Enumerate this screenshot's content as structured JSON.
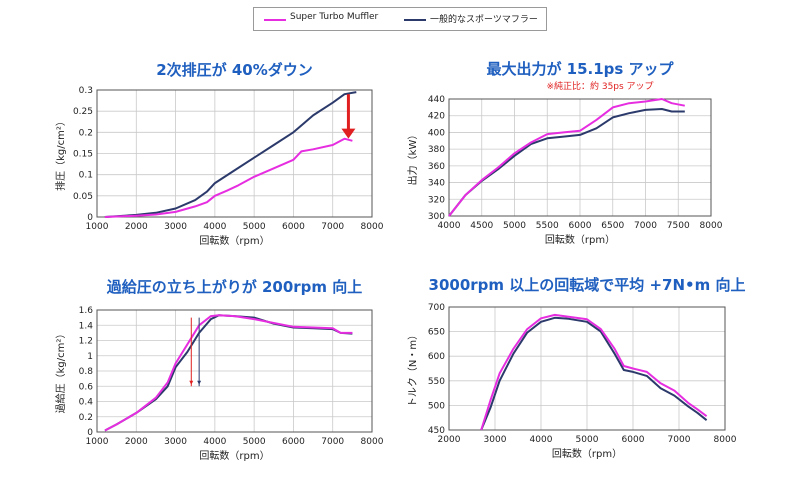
{
  "legend": {
    "s1": {
      "label": "Super Turbo Muffler",
      "color": "#e62ee0"
    },
    "s2": {
      "label": "一般的なスポーツマフラー",
      "color": "#2b3a6b"
    }
  },
  "chart_data": [
    {
      "type": "line",
      "title": "2次排圧が 40%ダウン",
      "subtitle": "",
      "xlabel": "回転数（rpm）",
      "ylabel": "排圧（kg/cm²）",
      "xlim": [
        1000,
        8000
      ],
      "ylim": [
        0,
        0.3
      ],
      "xticks": [
        1000,
        2000,
        3000,
        4000,
        5000,
        6000,
        7000,
        8000
      ],
      "yticks": [
        0,
        0.05,
        0.1,
        0.15,
        0.2,
        0.25,
        0.3
      ],
      "ytick_labels": [
        "0",
        "0.05",
        "0.1",
        "0.15",
        "0.2",
        "0.25",
        "0.3"
      ],
      "grid": true,
      "arrow": {
        "x": 7400,
        "y_from": 0.29,
        "y_to": 0.185,
        "color": "#e02020"
      },
      "series": [
        {
          "name": "Super Turbo Muffler",
          "x": [
            1200,
            2000,
            2500,
            3000,
            3500,
            3800,
            4000,
            4300,
            4600,
            5000,
            5500,
            6000,
            6200,
            6500,
            7000,
            7300,
            7500
          ],
          "y": [
            0,
            0.003,
            0.006,
            0.012,
            0.025,
            0.035,
            0.05,
            0.062,
            0.075,
            0.095,
            0.115,
            0.135,
            0.155,
            0.16,
            0.17,
            0.185,
            0.18
          ]
        },
        {
          "name": "一般的なスポーツマフラー",
          "x": [
            1200,
            2000,
            2500,
            3000,
            3500,
            3800,
            4000,
            4500,
            5000,
            5500,
            6000,
            6500,
            7000,
            7300,
            7600
          ],
          "y": [
            0,
            0.005,
            0.01,
            0.02,
            0.04,
            0.06,
            0.08,
            0.11,
            0.14,
            0.17,
            0.2,
            0.24,
            0.27,
            0.29,
            0.295
          ]
        }
      ]
    },
    {
      "type": "line",
      "title": "最大出力が 15.1ps アップ",
      "subtitle": "※純正比：約 35ps アップ",
      "xlabel": "回転数（rpm）",
      "ylabel": "出力（kW）",
      "xlim": [
        4000,
        8000
      ],
      "ylim": [
        300,
        440
      ],
      "xticks": [
        4000,
        4500,
        5000,
        5500,
        6000,
        6500,
        7000,
        7500,
        8000
      ],
      "yticks": [
        300,
        320,
        340,
        360,
        380,
        400,
        420,
        440
      ],
      "ytick_labels": [
        "300",
        "320",
        "340",
        "360",
        "380",
        "400",
        "420",
        "440"
      ],
      "grid": true,
      "series": [
        {
          "name": "Super Turbo Muffler",
          "x": [
            4000,
            4250,
            4500,
            4750,
            5000,
            5250,
            5500,
            5750,
            6000,
            6250,
            6500,
            6750,
            7000,
            7250,
            7400,
            7600
          ],
          "y": [
            300,
            325,
            343,
            358,
            375,
            388,
            398,
            400,
            402,
            415,
            430,
            435,
            437,
            440,
            435,
            432
          ]
        },
        {
          "name": "一般的なスポーツマフラー",
          "x": [
            4000,
            4250,
            4500,
            4750,
            5000,
            5250,
            5500,
            5750,
            6000,
            6250,
            6500,
            6750,
            7000,
            7250,
            7400,
            7600
          ],
          "y": [
            300,
            325,
            342,
            356,
            372,
            386,
            393,
            395,
            397,
            405,
            418,
            423,
            427,
            428,
            425,
            425
          ]
        }
      ]
    },
    {
      "type": "line",
      "title": "過給圧の立ち上がりが 200rpm 向上",
      "subtitle": "",
      "xlabel": "回転数（rpm）",
      "ylabel": "過給圧（kg/cm²）",
      "xlim": [
        1000,
        8000
      ],
      "ylim": [
        0,
        1.6
      ],
      "xticks": [
        1000,
        2000,
        3000,
        4000,
        5000,
        6000,
        7000,
        8000
      ],
      "yticks": [
        0,
        0.2,
        0.4,
        0.6,
        0.8,
        1.0,
        1.2,
        1.4,
        1.6
      ],
      "ytick_labels": [
        "0",
        "0.2",
        "0.4",
        "0.6",
        "0.8",
        "1",
        "1.2",
        "1.4",
        "1.6"
      ],
      "grid": true,
      "markers": [
        {
          "x": 3400,
          "color": "#e02020"
        },
        {
          "x": 3600,
          "color": "#2b3a6b"
        }
      ],
      "series": [
        {
          "name": "Super Turbo Muffler",
          "x": [
            1200,
            1500,
            2000,
            2500,
            2800,
            3000,
            3300,
            3600,
            3900,
            4100,
            4500,
            5000,
            5500,
            6000,
            6500,
            7000,
            7200,
            7500
          ],
          "y": [
            0.02,
            0.1,
            0.25,
            0.45,
            0.65,
            0.9,
            1.15,
            1.4,
            1.52,
            1.53,
            1.52,
            1.48,
            1.43,
            1.38,
            1.37,
            1.36,
            1.3,
            1.3
          ]
        },
        {
          "name": "一般的なスポーツマフラー",
          "x": [
            1200,
            1500,
            2000,
            2500,
            2800,
            3000,
            3300,
            3600,
            3900,
            4100,
            4500,
            5000,
            5500,
            6000,
            6500,
            7000,
            7200,
            7500
          ],
          "y": [
            0.02,
            0.1,
            0.25,
            0.43,
            0.6,
            0.85,
            1.05,
            1.3,
            1.48,
            1.53,
            1.52,
            1.5,
            1.42,
            1.37,
            1.36,
            1.35,
            1.3,
            1.29
          ]
        }
      ]
    },
    {
      "type": "line",
      "title": "3000rpm 以上の回転域で平均 +7N•m 向上",
      "subtitle": "",
      "xlabel": "回転数（rpm）",
      "ylabel": "トルク（N・m）",
      "xlim": [
        2000,
        8000
      ],
      "ylim": [
        450,
        700
      ],
      "xticks": [
        2000,
        3000,
        4000,
        5000,
        6000,
        7000,
        8000
      ],
      "yticks": [
        450,
        500,
        550,
        600,
        650,
        700
      ],
      "ytick_labels": [
        "450",
        "500",
        "550",
        "600",
        "650",
        "700"
      ],
      "grid": true,
      "series": [
        {
          "name": "Super Turbo Muffler",
          "x": [
            2700,
            2900,
            3100,
            3400,
            3700,
            4000,
            4300,
            4600,
            5000,
            5300,
            5600,
            5800,
            6000,
            6300,
            6600,
            6900,
            7200,
            7400,
            7600
          ],
          "y": [
            450,
            510,
            565,
            615,
            655,
            677,
            684,
            680,
            675,
            655,
            615,
            580,
            575,
            568,
            545,
            530,
            505,
            492,
            478
          ]
        },
        {
          "name": "一般的なスポーツマフラー",
          "x": [
            2700,
            2900,
            3100,
            3400,
            3700,
            4000,
            4300,
            4600,
            5000,
            5300,
            5600,
            5800,
            6000,
            6300,
            6600,
            6900,
            7200,
            7400,
            7600
          ],
          "y": [
            450,
            495,
            550,
            605,
            648,
            670,
            678,
            676,
            670,
            650,
            605,
            572,
            568,
            560,
            535,
            520,
            498,
            485,
            470
          ]
        }
      ]
    }
  ]
}
